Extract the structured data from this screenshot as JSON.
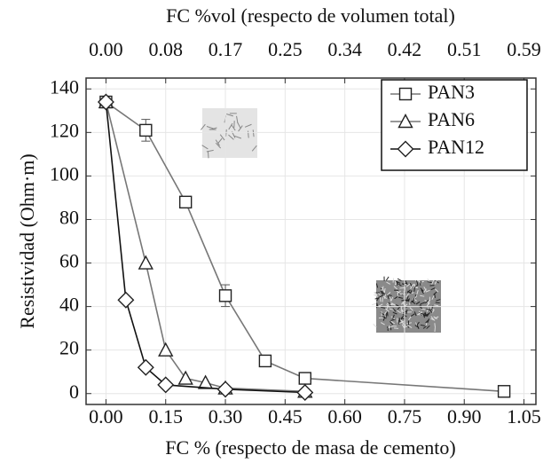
{
  "chart_data": {
    "type": "line",
    "title": "FC %vol (respecto de volumen total)",
    "x_label": "FC % (respecto de masa de cemento)",
    "y_label": "Resistividad (Ohm·m)",
    "xlim": [
      -0.05,
      1.08
    ],
    "ylim": [
      -5,
      145
    ],
    "x2lim": [
      -0.0281,
      0.6069
    ],
    "xticks": [
      {
        "value": 0,
        "label": "0.00"
      },
      0.15,
      {
        "value": 0.3,
        "label": "0.30"
      },
      0.45,
      {
        "value": 0.6,
        "label": "0.60"
      },
      0.75,
      {
        "value": 0.9,
        "label": "0.90"
      },
      1.05
    ],
    "x2ticks": [
      {
        "value": 0,
        "label": "0.00"
      },
      {
        "value": 0.0843,
        "label": "0.08"
      },
      {
        "value": 0.1686,
        "label": "0.17"
      },
      {
        "value": 0.2529,
        "label": "0.25"
      },
      {
        "value": 0.3371,
        "label": "0.34"
      },
      {
        "value": 0.4214,
        "label": "0.42"
      },
      {
        "value": 0.5057,
        "label": "0.51"
      },
      0.59
    ],
    "yticks": [
      0,
      20,
      40,
      60,
      80,
      100,
      120,
      140
    ],
    "grid": true,
    "legend": "upper right",
    "series": [
      {
        "name": "PAN3",
        "marker": "square",
        "color": "#777777",
        "x": [
          0,
          0.1,
          0.2,
          0.3,
          0.4,
          0.5,
          1.0
        ],
        "values": [
          134,
          121,
          88,
          45,
          15,
          7,
          1
        ],
        "errors": [
          2,
          5,
          2,
          5,
          1,
          1,
          1
        ]
      },
      {
        "name": "PAN6",
        "marker": "triangle",
        "color": "#777777",
        "x": [
          0,
          0.1,
          0.15,
          0.2,
          0.25,
          0.3,
          0.5
        ],
        "values": [
          134,
          60,
          20,
          7,
          5,
          2.5,
          1
        ]
      },
      {
        "name": "PAN12",
        "marker": "diamond",
        "color": "#111111",
        "x": [
          0,
          0.05,
          0.1,
          0.15,
          0.3,
          0.5
        ],
        "values": [
          134,
          43,
          12,
          4,
          2,
          0.5
        ]
      }
    ]
  }
}
